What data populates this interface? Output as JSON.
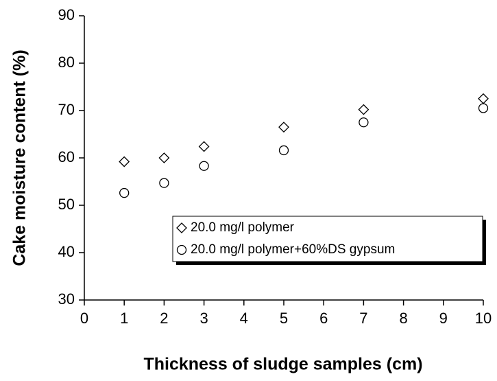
{
  "chart_data": {
    "type": "scatter",
    "x_label": "Thickness of sludge samples (cm)",
    "y_label": "Cake moisture content (%)",
    "x": [
      1,
      2,
      3,
      5,
      7,
      10
    ],
    "series": [
      {
        "name": "20.0 mg/l polymer",
        "marker": "diamond",
        "color": "#000000",
        "values": [
          59.2,
          60.0,
          62.4,
          66.5,
          70.2,
          72.5
        ]
      },
      {
        "name": "20.0 mg/l polymer+60%DS gypsum",
        "marker": "circle",
        "color": "#000000",
        "values": [
          52.6,
          54.7,
          58.3,
          61.6,
          67.5,
          70.5
        ]
      }
    ],
    "xlim": [
      0,
      10
    ],
    "xticks": [
      0,
      1,
      2,
      3,
      4,
      5,
      6,
      7,
      8,
      9,
      10
    ],
    "ylim": [
      30,
      90
    ],
    "yticks": [
      30,
      40,
      50,
      60,
      70,
      80,
      90
    ],
    "grid": false,
    "legend": "lower right"
  }
}
